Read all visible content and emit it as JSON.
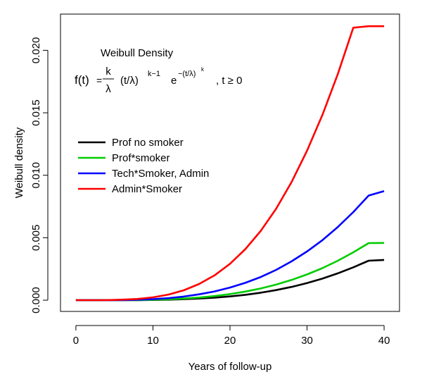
{
  "chart_data": {
    "type": "line",
    "xlabel": "Years of follow-up",
    "ylabel": "Weibull density",
    "xlim": [
      -2,
      42
    ],
    "ylim": [
      -0.0009,
      0.0229
    ],
    "xticks": [
      0,
      10,
      20,
      30,
      40
    ],
    "xtick_labels": [
      "0",
      "10",
      "20",
      "30",
      "40"
    ],
    "yticks": [
      0.0,
      0.005,
      0.01,
      0.015,
      0.02
    ],
    "ytick_labels": [
      "0.000",
      "0.005",
      "0.010",
      "0.015",
      "0.020"
    ],
    "grid": false,
    "legend_position": "left",
    "annotation": {
      "title": "Weibull Density",
      "lhs": "f(t)",
      "eq": "=",
      "frac_num": "k",
      "frac_den": "λ",
      "term1": "(t/λ)",
      "exp1": "k−1",
      "e": "e",
      "exp2": "−(t/λ)",
      "exp2_sup": "k",
      "condition": ", t ≥ 0"
    },
    "x": [
      0,
      2,
      4,
      6,
      8,
      10,
      12,
      14,
      16,
      18,
      20,
      22,
      24,
      26,
      28,
      30,
      32,
      34,
      36,
      38,
      40
    ],
    "series": [
      {
        "name": "Prof no smoker",
        "color": "#000000",
        "values": [
          0.0,
          0.0,
          0.0,
          0.0,
          1e-05,
          2e-05,
          4e-05,
          8e-05,
          0.00013,
          0.0002,
          0.0003,
          0.00043,
          0.0006,
          0.00081,
          0.00106,
          0.00137,
          0.00173,
          0.00215,
          0.00263,
          0.00316,
          0.00322
        ]
      },
      {
        "name": "Prof*smoker",
        "color": "#00cc00",
        "values": [
          0.0,
          0.0,
          0.0,
          0.0,
          1e-05,
          3e-05,
          7e-05,
          0.00013,
          0.00021,
          0.00033,
          0.00049,
          0.00069,
          0.00094,
          0.00125,
          0.00162,
          0.00206,
          0.00257,
          0.00316,
          0.00383,
          0.00457,
          0.00458
        ]
      },
      {
        "name": "Tech*Smoker, Admin",
        "color": "#0000ff",
        "values": [
          0.0,
          0.0,
          0.0,
          1e-05,
          3e-05,
          8e-05,
          0.00016,
          0.00029,
          0.00047,
          0.0007,
          0.00101,
          0.00139,
          0.00186,
          0.00243,
          0.00311,
          0.0039,
          0.00481,
          0.00586,
          0.00705,
          0.00838,
          0.00873
        ]
      },
      {
        "name": "Admin*Smoker",
        "color": "#ff0000",
        "values": [
          0.0,
          0.0,
          1e-05,
          4e-05,
          0.0001,
          0.00023,
          0.00045,
          0.00079,
          0.0013,
          0.00199,
          0.00291,
          0.00409,
          0.00555,
          0.00733,
          0.00946,
          0.01196,
          0.01484,
          0.01812,
          0.02181,
          0.02193,
          0.02193
        ]
      }
    ]
  }
}
